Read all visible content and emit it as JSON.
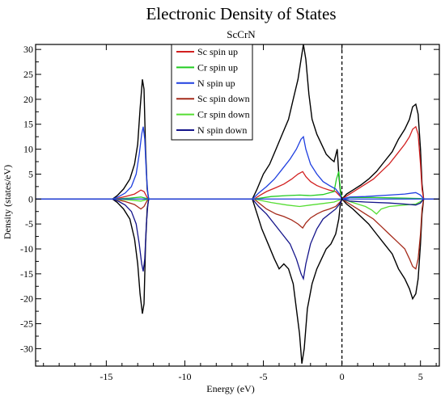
{
  "chart_data": {
    "type": "line",
    "title": "Electronic Density of States",
    "subtitle": "ScCrN",
    "xlabel": "Energy (eV)",
    "ylabel": "Density (states/eV)",
    "xlim": [
      -19.5,
      6.2
    ],
    "ylim": [
      -33.5,
      31
    ],
    "xticks": [
      -15,
      -10,
      -5,
      0,
      5
    ],
    "yticks": [
      -30,
      -25,
      -20,
      -15,
      -10,
      -5,
      0,
      5,
      10,
      15,
      20,
      25,
      30
    ],
    "fermi_level_line": {
      "x": 0,
      "style": "dashed"
    },
    "legend_position": "top-center",
    "total_dos": {
      "color": "#000000",
      "up": [
        [
          -19.5,
          0
        ],
        [
          -14.6,
          0
        ],
        [
          -14.3,
          0.7
        ],
        [
          -13.9,
          2
        ],
        [
          -13.5,
          4
        ],
        [
          -13.2,
          7
        ],
        [
          -13.0,
          11
        ],
        [
          -12.85,
          18
        ],
        [
          -12.7,
          24
        ],
        [
          -12.6,
          22
        ],
        [
          -12.5,
          10
        ],
        [
          -12.4,
          2
        ],
        [
          -12.3,
          0
        ],
        [
          -5.7,
          0
        ],
        [
          -5.4,
          2
        ],
        [
          -5.0,
          5
        ],
        [
          -4.6,
          7
        ],
        [
          -4.2,
          10
        ],
        [
          -3.8,
          13
        ],
        [
          -3.4,
          16
        ],
        [
          -3.1,
          20
        ],
        [
          -2.8,
          24
        ],
        [
          -2.6,
          28
        ],
        [
          -2.45,
          31
        ],
        [
          -2.3,
          28
        ],
        [
          -2.1,
          21
        ],
        [
          -1.9,
          16
        ],
        [
          -1.6,
          13
        ],
        [
          -1.3,
          11
        ],
        [
          -1.0,
          9
        ],
        [
          -0.7,
          8
        ],
        [
          -0.5,
          7.5
        ],
        [
          -0.3,
          10
        ],
        [
          -0.2,
          5
        ],
        [
          -0.1,
          1.5
        ],
        [
          0,
          0
        ],
        [
          0.3,
          1
        ],
        [
          0.7,
          1.8
        ],
        [
          1.2,
          2.8
        ],
        [
          1.7,
          4
        ],
        [
          2.2,
          5.5
        ],
        [
          2.7,
          7.5
        ],
        [
          3.2,
          9.5
        ],
        [
          3.6,
          12
        ],
        [
          4.0,
          14
        ],
        [
          4.3,
          16
        ],
        [
          4.5,
          18.5
        ],
        [
          4.7,
          19
        ],
        [
          4.85,
          17
        ],
        [
          5.0,
          10
        ],
        [
          5.1,
          3
        ],
        [
          5.2,
          0
        ],
        [
          6.2,
          0
        ]
      ],
      "down": [
        [
          -19.5,
          0
        ],
        [
          -14.6,
          0
        ],
        [
          -14.3,
          -0.7
        ],
        [
          -13.9,
          -2
        ],
        [
          -13.5,
          -4
        ],
        [
          -13.2,
          -8
        ],
        [
          -13.0,
          -13
        ],
        [
          -12.85,
          -19
        ],
        [
          -12.7,
          -23
        ],
        [
          -12.6,
          -21
        ],
        [
          -12.5,
          -9
        ],
        [
          -12.4,
          -2
        ],
        [
          -12.3,
          0
        ],
        [
          -5.7,
          0
        ],
        [
          -5.4,
          -3
        ],
        [
          -5.1,
          -6
        ],
        [
          -4.7,
          -9
        ],
        [
          -4.3,
          -12
        ],
        [
          -4.0,
          -14
        ],
        [
          -3.7,
          -13
        ],
        [
          -3.4,
          -14
        ],
        [
          -3.1,
          -17
        ],
        [
          -2.9,
          -22
        ],
        [
          -2.7,
          -27
        ],
        [
          -2.55,
          -33
        ],
        [
          -2.4,
          -30
        ],
        [
          -2.2,
          -22
        ],
        [
          -1.9,
          -17
        ],
        [
          -1.6,
          -14
        ],
        [
          -1.3,
          -12
        ],
        [
          -1.0,
          -10
        ],
        [
          -0.7,
          -9
        ],
        [
          -0.4,
          -7
        ],
        [
          -0.2,
          -4
        ],
        [
          -0.1,
          -1
        ],
        [
          0,
          0
        ],
        [
          0.3,
          -1
        ],
        [
          0.7,
          -2
        ],
        [
          1.2,
          -3.5
        ],
        [
          1.7,
          -5
        ],
        [
          2.2,
          -7
        ],
        [
          2.7,
          -9
        ],
        [
          3.2,
          -11
        ],
        [
          3.6,
          -14
        ],
        [
          4.0,
          -16
        ],
        [
          4.3,
          -18
        ],
        [
          4.5,
          -20
        ],
        [
          4.7,
          -19
        ],
        [
          4.85,
          -16
        ],
        [
          5.0,
          -9
        ],
        [
          5.1,
          -3
        ],
        [
          5.2,
          0
        ],
        [
          6.2,
          0
        ]
      ]
    },
    "series": [
      {
        "name": "Sc spin up",
        "color": "#d22020",
        "values": [
          [
            -19.5,
            0
          ],
          [
            -14.5,
            0
          ],
          [
            -13.8,
            0.5
          ],
          [
            -13.2,
            1
          ],
          [
            -12.8,
            1.8
          ],
          [
            -12.6,
            1.5
          ],
          [
            -12.4,
            0.3
          ],
          [
            -12.3,
            0
          ],
          [
            -5.6,
            0
          ],
          [
            -5.2,
            0.8
          ],
          [
            -4.8,
            1.5
          ],
          [
            -4.2,
            2.3
          ],
          [
            -3.7,
            3
          ],
          [
            -3.2,
            4
          ],
          [
            -2.8,
            5
          ],
          [
            -2.5,
            5.5
          ],
          [
            -2.3,
            4.5
          ],
          [
            -2.0,
            3.5
          ],
          [
            -1.6,
            2.7
          ],
          [
            -1.2,
            2.2
          ],
          [
            -0.8,
            1.8
          ],
          [
            -0.4,
            1.5
          ],
          [
            -0.1,
            0.5
          ],
          [
            0,
            0
          ],
          [
            0.5,
            1
          ],
          [
            1.0,
            2
          ],
          [
            1.5,
            3
          ],
          [
            2.0,
            4
          ],
          [
            2.5,
            5.5
          ],
          [
            3.0,
            7
          ],
          [
            3.5,
            9
          ],
          [
            4.0,
            11
          ],
          [
            4.3,
            12.5
          ],
          [
            4.5,
            14
          ],
          [
            4.7,
            14.5
          ],
          [
            4.85,
            13
          ],
          [
            5.0,
            7
          ],
          [
            5.1,
            2
          ],
          [
            5.2,
            0
          ],
          [
            6.2,
            0
          ]
        ]
      },
      {
        "name": "Cr spin up",
        "color": "#22cc22",
        "values": [
          [
            -19.5,
            0
          ],
          [
            -14.5,
            0
          ],
          [
            -13.5,
            0.2
          ],
          [
            -12.8,
            0.4
          ],
          [
            -12.4,
            0.1
          ],
          [
            -12.3,
            0
          ],
          [
            -5.6,
            0
          ],
          [
            -4.5,
            0.5
          ],
          [
            -3.5,
            0.7
          ],
          [
            -2.7,
            0.8
          ],
          [
            -2.0,
            0.7
          ],
          [
            -1.2,
            0.9
          ],
          [
            -0.5,
            1.5
          ],
          [
            -0.35,
            4
          ],
          [
            -0.2,
            5.5
          ],
          [
            -0.1,
            2
          ],
          [
            0,
            0
          ],
          [
            0.5,
            0.3
          ],
          [
            2.0,
            0.3
          ],
          [
            4.0,
            0.2
          ],
          [
            5.0,
            0.1
          ],
          [
            5.2,
            0
          ],
          [
            6.2,
            0
          ]
        ]
      },
      {
        "name": "N spin up",
        "color": "#1f3fe0",
        "values": [
          [
            -19.5,
            0
          ],
          [
            -14.6,
            0
          ],
          [
            -14.2,
            0.5
          ],
          [
            -13.8,
            1.2
          ],
          [
            -13.4,
            2.5
          ],
          [
            -13.1,
            5
          ],
          [
            -12.9,
            9
          ],
          [
            -12.75,
            13
          ],
          [
            -12.65,
            14.5
          ],
          [
            -12.55,
            12
          ],
          [
            -12.45,
            5
          ],
          [
            -12.35,
            1
          ],
          [
            -12.3,
            0
          ],
          [
            -5.7,
            0
          ],
          [
            -5.3,
            1.2
          ],
          [
            -4.8,
            2.5
          ],
          [
            -4.3,
            4
          ],
          [
            -3.8,
            6
          ],
          [
            -3.3,
            8
          ],
          [
            -2.9,
            10
          ],
          [
            -2.6,
            12
          ],
          [
            -2.45,
            12.5
          ],
          [
            -2.3,
            10
          ],
          [
            -2.0,
            7
          ],
          [
            -1.6,
            5
          ],
          [
            -1.2,
            3.5
          ],
          [
            -0.8,
            2.7
          ],
          [
            -0.4,
            2
          ],
          [
            -0.15,
            1
          ],
          [
            0,
            0
          ],
          [
            0.5,
            0.4
          ],
          [
            1.5,
            0.5
          ],
          [
            3.0,
            0.8
          ],
          [
            4.0,
            1
          ],
          [
            4.7,
            1.3
          ],
          [
            5.0,
            0.8
          ],
          [
            5.2,
            0
          ],
          [
            6.2,
            0
          ]
        ]
      },
      {
        "name": "Sc spin down",
        "color": "#a52a1a",
        "values": [
          [
            -19.5,
            0
          ],
          [
            -14.5,
            0
          ],
          [
            -13.8,
            -0.5
          ],
          [
            -13.2,
            -1.1
          ],
          [
            -12.8,
            -2
          ],
          [
            -12.6,
            -1.5
          ],
          [
            -12.4,
            -0.3
          ],
          [
            -12.3,
            0
          ],
          [
            -5.6,
            0
          ],
          [
            -5.2,
            -1
          ],
          [
            -4.8,
            -2
          ],
          [
            -4.2,
            -3
          ],
          [
            -3.7,
            -3.5
          ],
          [
            -3.2,
            -4.2
          ],
          [
            -2.8,
            -5
          ],
          [
            -2.5,
            -5.8
          ],
          [
            -2.3,
            -4.8
          ],
          [
            -2.0,
            -3.8
          ],
          [
            -1.6,
            -3
          ],
          [
            -1.2,
            -2.4
          ],
          [
            -0.8,
            -2
          ],
          [
            -0.4,
            -1.5
          ],
          [
            -0.1,
            -0.5
          ],
          [
            0,
            0
          ],
          [
            0.5,
            -1
          ],
          [
            1.0,
            -2
          ],
          [
            1.5,
            -3
          ],
          [
            2.0,
            -4
          ],
          [
            2.5,
            -5.5
          ],
          [
            3.0,
            -7
          ],
          [
            3.5,
            -8.5
          ],
          [
            4.0,
            -10
          ],
          [
            4.3,
            -12
          ],
          [
            4.5,
            -13.5
          ],
          [
            4.7,
            -14
          ],
          [
            4.85,
            -12
          ],
          [
            5.0,
            -7
          ],
          [
            5.1,
            -2
          ],
          [
            5.2,
            0
          ],
          [
            6.2,
            0
          ]
        ]
      },
      {
        "name": "Cr spin down",
        "color": "#55dd33",
        "values": [
          [
            -19.5,
            0
          ],
          [
            -14.5,
            0
          ],
          [
            -13.5,
            -0.2
          ],
          [
            -12.8,
            -0.4
          ],
          [
            -12.4,
            -0.1
          ],
          [
            -12.3,
            0
          ],
          [
            -5.6,
            0
          ],
          [
            -4.5,
            -0.7
          ],
          [
            -3.5,
            -1.2
          ],
          [
            -2.7,
            -1.5
          ],
          [
            -2.0,
            -1.2
          ],
          [
            -1.2,
            -0.9
          ],
          [
            -0.5,
            -0.6
          ],
          [
            0,
            0
          ],
          [
            0.5,
            -0.5
          ],
          [
            1.0,
            -1
          ],
          [
            1.5,
            -1.5
          ],
          [
            1.9,
            -2.2
          ],
          [
            2.2,
            -3
          ],
          [
            2.5,
            -2
          ],
          [
            3.0,
            -1.5
          ],
          [
            4.0,
            -1.2
          ],
          [
            4.7,
            -1
          ],
          [
            5.0,
            -0.5
          ],
          [
            5.2,
            0
          ],
          [
            6.2,
            0
          ]
        ]
      },
      {
        "name": "N spin down",
        "color": "#14148a",
        "values": [
          [
            -19.5,
            0
          ],
          [
            -14.6,
            0
          ],
          [
            -14.2,
            -0.5
          ],
          [
            -13.8,
            -1.2
          ],
          [
            -13.4,
            -2.5
          ],
          [
            -13.1,
            -5
          ],
          [
            -12.9,
            -9
          ],
          [
            -12.75,
            -13
          ],
          [
            -12.65,
            -14.5
          ],
          [
            -12.55,
            -12
          ],
          [
            -12.45,
            -5
          ],
          [
            -12.35,
            -1
          ],
          [
            -12.3,
            0
          ],
          [
            -5.7,
            0
          ],
          [
            -5.3,
            -1.5
          ],
          [
            -4.8,
            -3
          ],
          [
            -4.3,
            -5
          ],
          [
            -3.8,
            -7
          ],
          [
            -3.3,
            -9
          ],
          [
            -2.9,
            -12
          ],
          [
            -2.6,
            -15
          ],
          [
            -2.45,
            -16
          ],
          [
            -2.3,
            -13
          ],
          [
            -2.0,
            -9
          ],
          [
            -1.6,
            -6
          ],
          [
            -1.2,
            -4
          ],
          [
            -0.8,
            -3
          ],
          [
            -0.4,
            -2
          ],
          [
            -0.15,
            -1
          ],
          [
            0,
            0
          ],
          [
            0.5,
            -0.4
          ],
          [
            1.5,
            -0.6
          ],
          [
            3.0,
            -0.8
          ],
          [
            4.0,
            -1
          ],
          [
            4.7,
            -1.2
          ],
          [
            5.0,
            -0.8
          ],
          [
            5.2,
            0
          ],
          [
            6.2,
            0
          ]
        ]
      }
    ]
  }
}
